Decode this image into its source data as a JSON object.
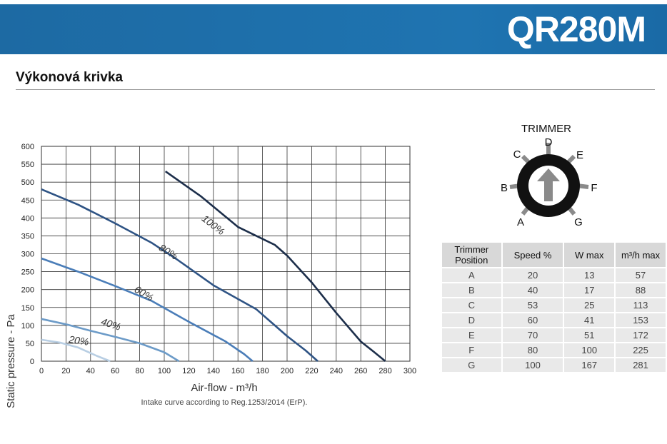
{
  "header": {
    "model": "QR280M"
  },
  "section": {
    "title": "Výkonová krivka"
  },
  "chart_data": {
    "type": "line",
    "xlabel": "Air-flow - m³/h",
    "ylabel": "Static pressure - Pa",
    "caption": "Intake curve according to Reg.1253/2014 (ErP).",
    "xlim": [
      0,
      300
    ],
    "ylim": [
      0,
      600
    ],
    "xticks": [
      "0",
      "20",
      "40",
      "60",
      "80",
      "100",
      "120",
      "140",
      "160",
      "180",
      "200",
      "220",
      "240",
      "260",
      "280",
      "300"
    ],
    "yticks": [
      "0",
      "50",
      "100",
      "150",
      "200",
      "250",
      "300",
      "350",
      "400",
      "450",
      "500",
      "550",
      "600"
    ],
    "grid": true,
    "series": [
      {
        "name": "100%",
        "color": "#1c2e4a",
        "x": [
          101,
          130,
          160,
          190,
          200,
          220,
          240,
          260,
          270,
          280
        ],
        "y": [
          530,
          460,
          375,
          325,
          295,
          220,
          135,
          55,
          28,
          0
        ]
      },
      {
        "name": "80%",
        "color": "#2e5384",
        "x": [
          0,
          30,
          60,
          90,
          110,
          140,
          175,
          200,
          215,
          225
        ],
        "y": [
          480,
          437,
          385,
          330,
          285,
          212,
          145,
          70,
          30,
          0
        ]
      },
      {
        "name": "60%",
        "color": "#4a7db8",
        "x": [
          0,
          30,
          60,
          90,
          120,
          150,
          165,
          172
        ],
        "y": [
          287,
          250,
          210,
          168,
          110,
          55,
          20,
          0
        ]
      },
      {
        "name": "40%",
        "color": "#6c9bc8",
        "x": [
          0,
          20,
          40,
          60,
          80,
          100,
          112
        ],
        "y": [
          118,
          103,
          85,
          68,
          50,
          25,
          0
        ]
      },
      {
        "name": "20%",
        "color": "#b8cee3",
        "x": [
          0,
          15,
          30,
          45,
          56
        ],
        "y": [
          60,
          52,
          38,
          15,
          0
        ]
      }
    ]
  },
  "trimmer": {
    "title": "TRIMMER",
    "labels": [
      "A",
      "B",
      "C",
      "D",
      "E",
      "F",
      "G"
    ]
  },
  "table": {
    "headers": [
      "Trimmer Position",
      "Speed %",
      "W max",
      "m³/h max"
    ],
    "rows": [
      [
        "A",
        "20",
        "13",
        "57"
      ],
      [
        "B",
        "40",
        "17",
        "88"
      ],
      [
        "C",
        "53",
        "25",
        "113"
      ],
      [
        "D",
        "60",
        "41",
        "153"
      ],
      [
        "E",
        "70",
        "51",
        "172"
      ],
      [
        "F",
        "80",
        "100",
        "225"
      ],
      [
        "G",
        "100",
        "167",
        "281"
      ]
    ]
  }
}
